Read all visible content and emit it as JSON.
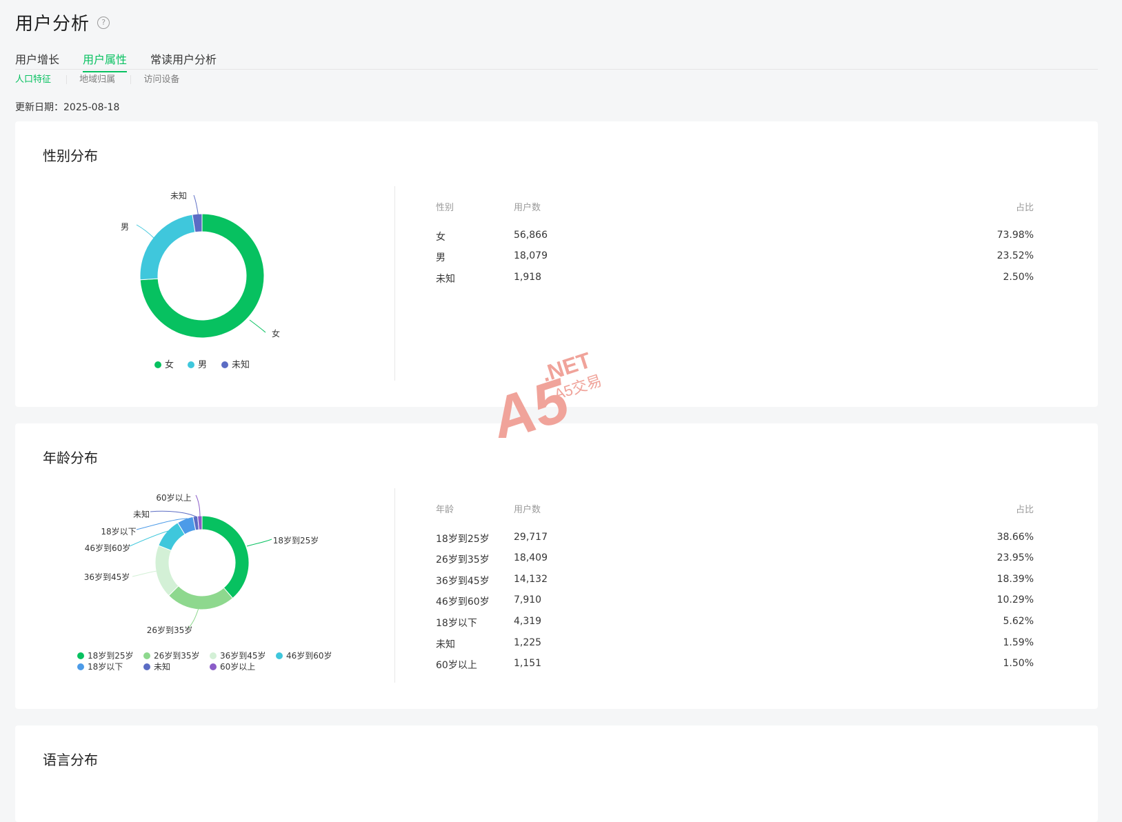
{
  "page": {
    "title": "用户分析",
    "help_icon": "?"
  },
  "tabs": [
    "用户增长",
    "用户属性",
    "常读用户分析"
  ],
  "subtabs": [
    "人口特征",
    "地域归属",
    "访问设备"
  ],
  "update": {
    "label": "更新日期：",
    "date": "2025-08-18"
  },
  "colors": {
    "accent": "#07c160"
  },
  "gender": {
    "title": "性别分布",
    "headers": {
      "col1": "性别",
      "col2": "用户数",
      "col3": "占比"
    },
    "rows": [
      {
        "name": "女",
        "count": "56,866",
        "pct": "73.98%"
      },
      {
        "name": "男",
        "count": "18,079",
        "pct": "23.52%"
      },
      {
        "name": "未知",
        "count": "1,918",
        "pct": "2.50%"
      }
    ],
    "chart_labels": [
      "未知",
      "男",
      "女"
    ],
    "legend": [
      "女",
      "男",
      "未知"
    ]
  },
  "age": {
    "title": "年龄分布",
    "headers": {
      "col1": "年龄",
      "col2": "用户数",
      "col3": "占比"
    },
    "rows": [
      {
        "name": "18岁到25岁",
        "count": "29,717",
        "pct": "38.66%"
      },
      {
        "name": "26岁到35岁",
        "count": "18,409",
        "pct": "23.95%"
      },
      {
        "name": "36岁到45岁",
        "count": "14,132",
        "pct": "18.39%"
      },
      {
        "name": "46岁到60岁",
        "count": "7,910",
        "pct": "10.29%"
      },
      {
        "name": "18岁以下",
        "count": "4,319",
        "pct": "5.62%"
      },
      {
        "name": "未知",
        "count": "1,225",
        "pct": "1.59%"
      },
      {
        "name": "60岁以上",
        "count": "1,151",
        "pct": "1.50%"
      }
    ],
    "legend": [
      "18岁到25岁",
      "26岁到35岁",
      "36岁到45岁",
      "46岁到60岁",
      "18岁以下",
      "未知",
      "60岁以上"
    ]
  },
  "language": {
    "title": "语言分布"
  },
  "watermark": {
    "logo": "A5",
    "domain": ".NET",
    "sub": "A5交易"
  },
  "chart_data": [
    {
      "type": "pie",
      "categories": [
        "女",
        "男",
        "未知"
      ],
      "values": [
        73.98,
        23.52,
        2.5
      ],
      "colors": [
        "#07c160",
        "#3fc7dc",
        "#5b6cc4"
      ]
    },
    {
      "type": "pie",
      "categories": [
        "18岁到25岁",
        "26岁到35岁",
        "36岁到45岁",
        "46岁到60岁",
        "18岁以下",
        "未知",
        "60岁以上"
      ],
      "values": [
        38.66,
        23.95,
        18.39,
        10.29,
        5.62,
        1.59,
        1.5
      ],
      "colors": [
        "#07c160",
        "#8ed88e",
        "#d3f0d6",
        "#3fc7dc",
        "#4c9be8",
        "#5b6cc4",
        "#8a5cc8"
      ]
    }
  ]
}
